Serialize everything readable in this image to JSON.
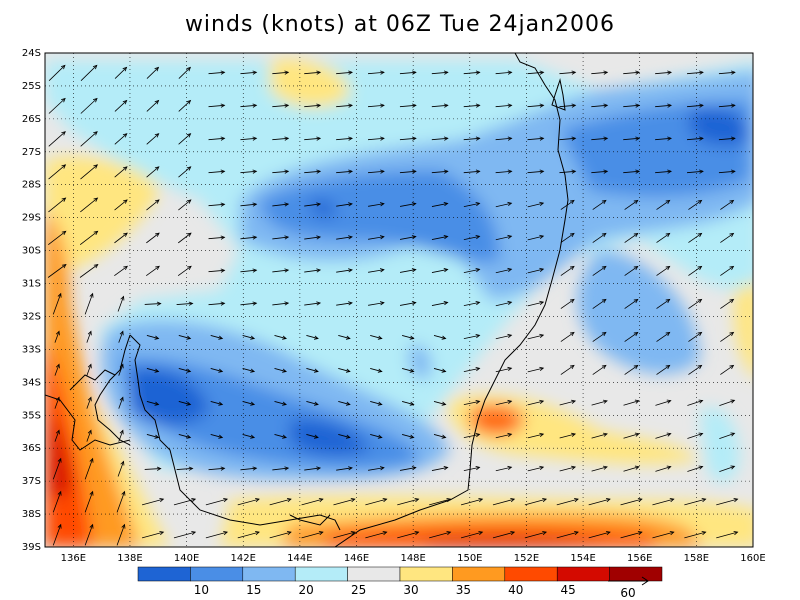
{
  "title": "winds (knots) at 06Z Tue 24jan2006",
  "map": {
    "lat_labels": [
      "24S",
      "25S",
      "26S",
      "27S",
      "28S",
      "29S",
      "30S",
      "31S",
      "32S",
      "33S",
      "34S",
      "35S",
      "36S",
      "37S",
      "38S",
      "39S"
    ],
    "lon_labels": [
      "136E",
      "138E",
      "140E",
      "142E",
      "144E",
      "146E",
      "148E",
      "150E",
      "152E",
      "154E",
      "156E",
      "158E",
      "160E"
    ],
    "lat_range": [
      -39,
      -24
    ],
    "lon_range": [
      135,
      160
    ]
  },
  "colorbar": {
    "levels": [
      "10",
      "15",
      "20",
      "25",
      "30",
      "35",
      "40",
      "45"
    ],
    "colors": [
      "#1e64d4",
      "#4a8ee6",
      "#7fb8f2",
      "#b4ecf8",
      "#e8e8e8",
      "#ffe680",
      "#ff9a20",
      "#ff4a00",
      "#d40a00",
      "#a00000"
    ]
  },
  "reference_vector": {
    "label": "60"
  },
  "colors": {
    "coast": "#000000",
    "arrow": "#000000",
    "grid": "#000000"
  }
}
